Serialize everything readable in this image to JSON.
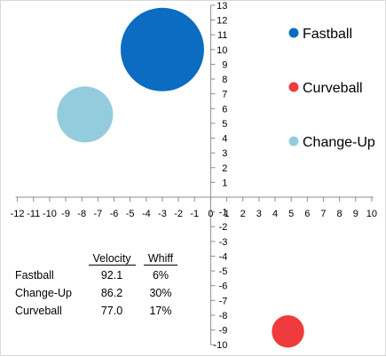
{
  "chart_data": {
    "type": "bubble",
    "xlim": [
      -12,
      10
    ],
    "ylim": [
      -10,
      13
    ],
    "x_ticks": [
      -12,
      -11,
      -10,
      -9,
      -8,
      -7,
      -6,
      -5,
      -4,
      -3,
      -2,
      -1,
      0,
      1,
      2,
      3,
      4,
      5,
      6,
      7,
      8,
      9,
      10
    ],
    "y_ticks": [
      13,
      12,
      11,
      10,
      9,
      8,
      7,
      6,
      5,
      4,
      3,
      2,
      1,
      0,
      -1,
      -2,
      -3,
      -4,
      -5,
      -6,
      -7,
      -8,
      -9,
      -10
    ],
    "grid": false,
    "legend_position": "right",
    "series": [
      {
        "name": "Fastball",
        "x": -3.0,
        "y": 10.0,
        "size": 100,
        "color": "#0b6cc1"
      },
      {
        "name": "Curveball",
        "x": 4.8,
        "y": -9.1,
        "size": 15,
        "color": "#ef3b3b"
      },
      {
        "name": "Change-Up",
        "x": -7.8,
        "y": 5.6,
        "size": 45,
        "color": "#93cddd"
      }
    ],
    "table": {
      "headers": [
        "",
        "Velocity",
        "Whiff"
      ],
      "rows": [
        [
          "Fastball",
          "92.1",
          "6%"
        ],
        [
          "Change-Up",
          "86.2",
          "30%"
        ],
        [
          "Curveball",
          "77.0",
          "17%"
        ]
      ]
    }
  }
}
